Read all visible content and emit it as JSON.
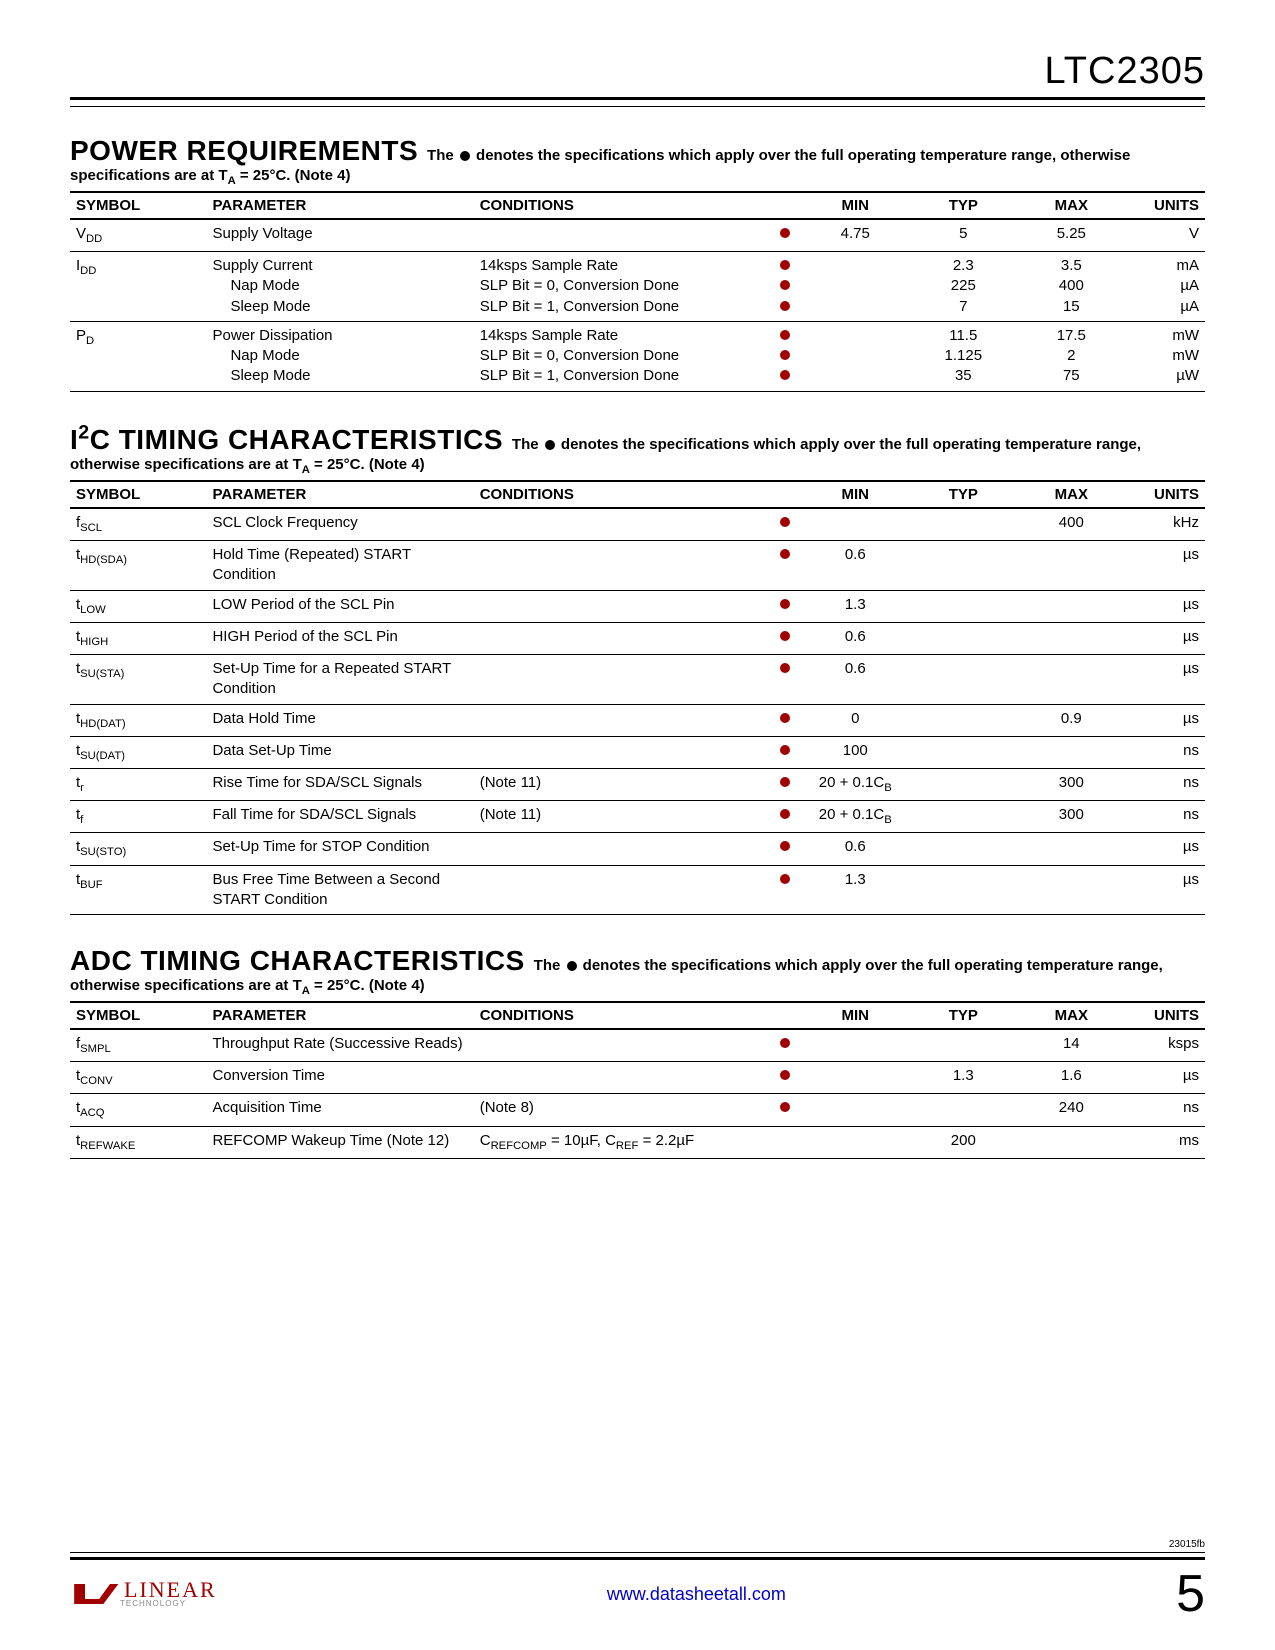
{
  "part_number": "LTC2305",
  "doc_number": "23015fb",
  "footer_link": "www.datasheetall.com",
  "page_number": "5",
  "logo_text": "LINEAR",
  "logo_subtext": "TECHNOLOGY",
  "dot_color": "#a00000",
  "sections": [
    {
      "title": "POWER REQUIREMENTS",
      "note_pre": "The ",
      "note_post": " denotes the specifications which apply over the full operating temperature range, otherwise specifications are at T",
      "note_sub": "A",
      "note_tail": " = 25°C. (Note 4)",
      "columns": [
        "SYMBOL",
        "PARAMETER",
        "CONDITIONS",
        "",
        "MIN",
        "TYP",
        "MAX",
        "UNITS"
      ],
      "rows": [
        {
          "symbol": "V<sub>DD</sub>",
          "parameter": "Supply Voltage",
          "conditions": "",
          "dot": true,
          "min": "4.75",
          "typ": "5",
          "max": "5.25",
          "units": "V"
        },
        {
          "symbol": "I<sub>DD</sub>",
          "parameter": "Supply Current<br><span class='indent'>Nap Mode</span><span class='indent'>Sleep Mode</span>",
          "conditions": "14ksps Sample Rate<br>SLP Bit = 0, Conversion Done<br>SLP Bit = 1, Conversion Done",
          "dot": "3",
          "min": "",
          "typ": "2.3<br>225<br>7",
          "max": "3.5<br>400<br>15",
          "units": "mA<br>µA<br>µA"
        },
        {
          "symbol": "P<sub>D</sub>",
          "parameter": "Power Dissipation<br><span class='indent'>Nap Mode</span><span class='indent'>Sleep Mode</span>",
          "conditions": "14ksps Sample Rate<br>SLP Bit = 0, Conversion Done<br>SLP Bit = 1, Conversion Done",
          "dot": "3",
          "min": "",
          "typ": "11.5<br>1.125<br>35",
          "max": "17.5<br>2<br>75",
          "units": "mW<br>mW<br>µW"
        }
      ]
    },
    {
      "title": "I<sup>2</sup>C TIMING CHARACTERISTICS",
      "note_pre": "The ",
      "note_post": " denotes the specifications which apply over the full operating temperature range, otherwise specifications are at T",
      "note_sub": "A",
      "note_tail": " = 25°C. (Note 4)",
      "columns": [
        "SYMBOL",
        "PARAMETER",
        "CONDITIONS",
        "",
        "MIN",
        "TYP",
        "MAX",
        "UNITS"
      ],
      "rows": [
        {
          "symbol": "f<sub>SCL</sub>",
          "parameter": "SCL Clock Frequency",
          "conditions": "",
          "dot": true,
          "min": "",
          "typ": "",
          "max": "400",
          "units": "kHz"
        },
        {
          "symbol": "t<sub>HD(SDA)</sub>",
          "parameter": "Hold Time (Repeated) START Condition",
          "conditions": "",
          "dot": true,
          "min": "0.6",
          "typ": "",
          "max": "",
          "units": "µs"
        },
        {
          "symbol": "t<sub>LOW</sub>",
          "parameter": "LOW Period of the SCL Pin",
          "conditions": "",
          "dot": true,
          "min": "1.3",
          "typ": "",
          "max": "",
          "units": "µs"
        },
        {
          "symbol": "t<sub>HIGH</sub>",
          "parameter": "HIGH Period of the SCL Pin",
          "conditions": "",
          "dot": true,
          "min": "0.6",
          "typ": "",
          "max": "",
          "units": "µs"
        },
        {
          "symbol": "t<sub>SU(STA)</sub>",
          "parameter": "Set-Up Time for a Repeated START Condition",
          "conditions": "",
          "dot": true,
          "min": "0.6",
          "typ": "",
          "max": "",
          "units": "µs"
        },
        {
          "symbol": "t<sub>HD(DAT)</sub>",
          "parameter": "Data Hold Time",
          "conditions": "",
          "dot": true,
          "min": "0",
          "typ": "",
          "max": "0.9",
          "units": "µs"
        },
        {
          "symbol": "t<sub>SU(DAT)</sub>",
          "parameter": "Data Set-Up Time",
          "conditions": "",
          "dot": true,
          "min": "100",
          "typ": "",
          "max": "",
          "units": "ns"
        },
        {
          "symbol": "t<sub>r</sub>",
          "parameter": "Rise Time for SDA/SCL Signals",
          "conditions": "(Note 11)",
          "dot": true,
          "min": "20 + 0.1C<sub>B</sub>",
          "typ": "",
          "max": "300",
          "units": "ns"
        },
        {
          "symbol": "t<sub>f</sub>",
          "parameter": "Fall Time for SDA/SCL Signals",
          "conditions": "(Note 11)",
          "dot": true,
          "min": "20 + 0.1C<sub>B</sub>",
          "typ": "",
          "max": "300",
          "units": "ns"
        },
        {
          "symbol": "t<sub>SU(STO)</sub>",
          "parameter": "Set-Up Time for STOP Condition",
          "conditions": "",
          "dot": true,
          "min": "0.6",
          "typ": "",
          "max": "",
          "units": "µs"
        },
        {
          "symbol": "t<sub>BUF</sub>",
          "parameter": "Bus Free Time Between a Second START Condition",
          "conditions": "",
          "dot": true,
          "min": "1.3",
          "typ": "",
          "max": "",
          "units": "µs"
        }
      ]
    },
    {
      "title": "ADC TIMING CHARACTERISTICS",
      "note_pre": "The ",
      "note_post": " denotes the specifications which apply over the full operating temperature range, otherwise specifications are at T",
      "note_sub": "A",
      "note_tail": " = 25°C. (Note 4)",
      "columns": [
        "SYMBOL",
        "PARAMETER",
        "CONDITIONS",
        "",
        "MIN",
        "TYP",
        "MAX",
        "UNITS"
      ],
      "rows": [
        {
          "symbol": "f<sub>SMPL</sub>",
          "parameter": "Throughput Rate (Successive Reads)",
          "conditions": "",
          "dot": true,
          "min": "",
          "typ": "",
          "max": "14",
          "units": "ksps"
        },
        {
          "symbol": "t<sub>CONV</sub>",
          "parameter": "Conversion Time",
          "conditions": "",
          "dot": true,
          "min": "",
          "typ": "1.3",
          "max": "1.6",
          "units": "µs"
        },
        {
          "symbol": "t<sub>ACQ</sub>",
          "parameter": "Acquisition Time",
          "conditions": "(Note 8)",
          "dot": true,
          "min": "",
          "typ": "",
          "max": "240",
          "units": "ns"
        },
        {
          "symbol": "t<sub>REFWAKE</sub>",
          "parameter": "REFCOMP Wakeup Time (Note 12)",
          "conditions": "C<sub>REFCOMP</sub> = 10µF, C<sub>REF</sub> = 2.2µF",
          "dot": false,
          "min": "",
          "typ": "200",
          "max": "",
          "units": "ms"
        }
      ]
    }
  ]
}
